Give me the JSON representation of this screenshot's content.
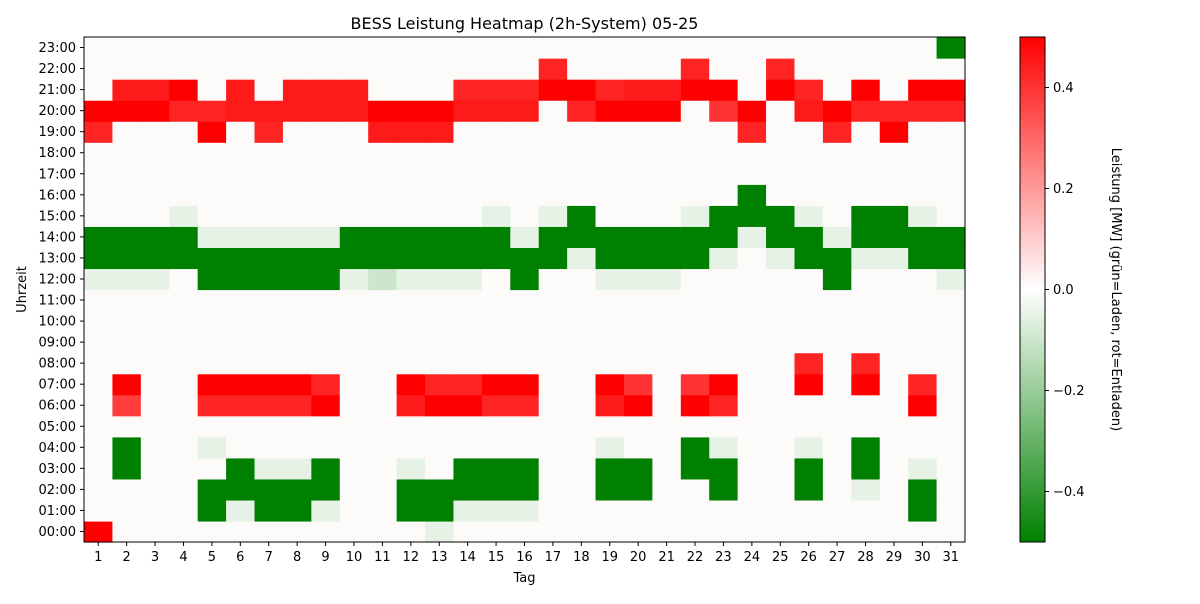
{
  "chart_data": {
    "type": "heatmap",
    "title": "BESS Leistung Heatmap (2h-System) 05-25",
    "xlabel": "Tag",
    "ylabel": "Uhrzeit",
    "x_categories": [
      "1",
      "2",
      "3",
      "4",
      "5",
      "6",
      "7",
      "8",
      "9",
      "10",
      "11",
      "12",
      "13",
      "14",
      "15",
      "16",
      "17",
      "18",
      "19",
      "20",
      "21",
      "22",
      "23",
      "24",
      "25",
      "26",
      "27",
      "28",
      "29",
      "30",
      "31"
    ],
    "y_categories": [
      "00:00",
      "01:00",
      "02:00",
      "03:00",
      "04:00",
      "05:00",
      "06:00",
      "07:00",
      "08:00",
      "09:00",
      "10:00",
      "11:00",
      "12:00",
      "13:00",
      "14:00",
      "15:00",
      "16:00",
      "17:00",
      "18:00",
      "19:00",
      "20:00",
      "21:00",
      "22:00",
      "23:00"
    ],
    "colorbar": {
      "label": "Leistung [MW] (grün=Laden, rot=Entladen)",
      "min": -0.5,
      "max": 0.5,
      "ticks": [
        -0.4,
        -0.2,
        0.0,
        0.2,
        0.4
      ],
      "tick_labels": [
        "−0.4",
        "−0.2",
        "0.0",
        "0.2",
        "0.4"
      ],
      "colors": [
        "#008000",
        "#ffffff",
        "#ff0000"
      ]
    },
    "values": [
      [
        0.5,
        0,
        0,
        0,
        0,
        0,
        0,
        0,
        0,
        0,
        0,
        0,
        -0.05,
        0,
        0,
        0,
        0,
        0,
        0,
        0,
        0,
        0,
        0,
        0,
        0,
        0,
        0,
        0,
        0,
        0,
        0
      ],
      [
        0,
        0,
        0,
        0,
        -0.5,
        -0.05,
        -0.5,
        -0.5,
        -0.05,
        0,
        0,
        -0.5,
        -0.5,
        -0.05,
        -0.05,
        -0.05,
        0,
        0,
        0,
        0,
        0,
        0,
        0,
        0,
        0,
        0,
        0,
        0,
        0,
        -0.5,
        0
      ],
      [
        0,
        0,
        0,
        0,
        -0.5,
        -0.5,
        -0.5,
        -0.5,
        -0.5,
        0,
        0,
        -0.5,
        -0.5,
        -0.5,
        -0.5,
        -0.5,
        0,
        0,
        -0.5,
        -0.5,
        0,
        0,
        -0.5,
        0,
        0,
        -0.5,
        0,
        -0.05,
        0,
        -0.5,
        0
      ],
      [
        0,
        -0.5,
        0,
        0,
        0,
        -0.5,
        -0.05,
        -0.05,
        -0.5,
        0,
        0,
        -0.05,
        0,
        -0.5,
        -0.5,
        -0.5,
        0,
        0,
        -0.5,
        -0.5,
        0,
        -0.5,
        -0.5,
        0,
        0,
        -0.5,
        0,
        -0.5,
        0,
        -0.05,
        0
      ],
      [
        0,
        -0.5,
        0,
        0,
        -0.05,
        0,
        0,
        0,
        0,
        0,
        0,
        0,
        0,
        0,
        0,
        0,
        0,
        0,
        -0.05,
        0,
        0,
        -0.5,
        -0.05,
        0,
        0,
        -0.05,
        0,
        -0.5,
        0,
        0,
        0
      ],
      [
        0,
        0,
        0,
        0,
        0,
        0,
        0,
        0,
        0,
        0,
        0,
        0,
        0,
        0,
        0,
        0,
        0,
        0,
        0,
        0,
        0,
        0,
        0,
        0,
        0,
        0,
        0,
        0,
        0,
        0,
        0
      ],
      [
        0,
        0.38,
        0,
        0,
        0.43,
        0.43,
        0.43,
        0.43,
        0.5,
        0,
        0,
        0.45,
        0.5,
        0.5,
        0.43,
        0.43,
        0,
        0,
        0.45,
        0.5,
        0,
        0.5,
        0.43,
        0,
        0,
        0,
        0,
        0,
        0,
        0.5,
        0
      ],
      [
        0,
        0.5,
        0,
        0,
        0.5,
        0.5,
        0.5,
        0.5,
        0.43,
        0,
        0,
        0.5,
        0.43,
        0.43,
        0.5,
        0.5,
        0,
        0,
        0.5,
        0.4,
        0,
        0.4,
        0.5,
        0,
        0,
        0.5,
        0,
        0.5,
        0,
        0.43,
        0
      ],
      [
        0,
        0,
        0,
        0,
        0,
        0,
        0,
        0,
        0,
        0,
        0,
        0,
        0,
        0,
        0,
        0,
        0,
        0,
        0,
        0,
        0,
        0,
        0,
        0,
        0,
        0.43,
        0,
        0.43,
        0,
        0,
        0
      ],
      [
        0,
        0,
        0,
        0,
        0,
        0,
        0,
        0,
        0,
        0,
        0,
        0,
        0,
        0,
        0,
        0,
        0,
        0,
        0,
        0,
        0,
        0,
        0,
        0,
        0,
        0,
        0,
        0,
        0,
        0,
        0
      ],
      [
        0,
        0,
        0,
        0,
        0,
        0,
        0,
        0,
        0,
        0,
        0,
        0,
        0,
        0,
        0,
        0,
        0,
        0,
        0,
        0,
        0,
        0,
        0,
        0,
        0,
        0,
        0,
        0,
        0,
        0,
        0
      ],
      [
        0,
        0,
        0,
        0,
        0,
        0,
        0,
        0,
        0,
        0,
        0,
        0,
        0,
        0,
        0,
        0,
        0,
        0,
        0,
        0,
        0,
        0,
        0,
        0,
        0,
        0,
        0,
        0,
        0,
        0,
        0
      ],
      [
        -0.05,
        -0.05,
        -0.05,
        0,
        -0.5,
        -0.5,
        -0.5,
        -0.5,
        -0.5,
        -0.05,
        -0.1,
        -0.05,
        -0.05,
        -0.05,
        0,
        -0.5,
        0,
        0,
        -0.05,
        -0.05,
        -0.05,
        0,
        0,
        0,
        0,
        0,
        -0.5,
        0,
        0,
        0,
        -0.05
      ],
      [
        -0.5,
        -0.5,
        -0.5,
        -0.5,
        -0.5,
        -0.5,
        -0.5,
        -0.5,
        -0.5,
        -0.5,
        -0.5,
        -0.5,
        -0.5,
        -0.5,
        -0.5,
        -0.5,
        -0.5,
        -0.05,
        -0.5,
        -0.5,
        -0.5,
        -0.5,
        -0.05,
        0,
        -0.05,
        -0.5,
        -0.5,
        -0.05,
        -0.05,
        -0.5,
        -0.5
      ],
      [
        -0.5,
        -0.5,
        -0.5,
        -0.5,
        -0.05,
        -0.05,
        -0.05,
        -0.05,
        -0.05,
        -0.5,
        -0.5,
        -0.5,
        -0.5,
        -0.5,
        -0.5,
        -0.05,
        -0.5,
        -0.5,
        -0.5,
        -0.5,
        -0.5,
        -0.5,
        -0.5,
        -0.05,
        -0.5,
        -0.5,
        -0.05,
        -0.5,
        -0.5,
        -0.5,
        -0.5
      ],
      [
        0,
        0,
        0,
        -0.05,
        0,
        0,
        0,
        0,
        0,
        0,
        0,
        0,
        0,
        0,
        -0.05,
        0,
        -0.05,
        -0.5,
        0,
        0,
        0,
        -0.05,
        -0.5,
        -0.5,
        -0.5,
        -0.05,
        0,
        -0.5,
        -0.5,
        -0.05,
        0
      ],
      [
        0,
        0,
        0,
        0,
        0,
        0,
        0,
        0,
        0,
        0,
        0,
        0,
        0,
        0,
        0,
        0,
        0,
        0,
        0,
        0,
        0,
        0,
        0,
        -0.5,
        0,
        0,
        0,
        0,
        0,
        0,
        0
      ],
      [
        0,
        0,
        0,
        0,
        0,
        0,
        0,
        0,
        0,
        0,
        0,
        0,
        0,
        0,
        0,
        0,
        0,
        0,
        0,
        0,
        0,
        0,
        0,
        0,
        0,
        0,
        0,
        0,
        0,
        0,
        0
      ],
      [
        0,
        0,
        0,
        0,
        0,
        0,
        0,
        0,
        0,
        0,
        0,
        0,
        0,
        0,
        0,
        0,
        0,
        0,
        0,
        0,
        0,
        0,
        0,
        0,
        0,
        0,
        0,
        0,
        0,
        0,
        0
      ],
      [
        0.43,
        0,
        0,
        0,
        0.5,
        0,
        0.43,
        0,
        0,
        0,
        0.45,
        0.45,
        0.45,
        0,
        0,
        0,
        0,
        0,
        0,
        0,
        0,
        0,
        0,
        0.43,
        0,
        0,
        0.43,
        0,
        0.5,
        0,
        0
      ],
      [
        0.5,
        0.5,
        0.5,
        0.43,
        0.43,
        0.45,
        0.45,
        0.45,
        0.45,
        0.45,
        0.5,
        0.5,
        0.5,
        0.45,
        0.45,
        0.45,
        0,
        0.43,
        0.5,
        0.5,
        0.5,
        0,
        0.4,
        0.5,
        0,
        0.45,
        0.5,
        0.43,
        0.43,
        0.43,
        0.43
      ],
      [
        0,
        0.45,
        0.45,
        0.5,
        0,
        0.45,
        0,
        0.45,
        0.45,
        0.45,
        0,
        0,
        0,
        0.43,
        0.43,
        0.43,
        0.5,
        0.5,
        0.43,
        0.45,
        0.45,
        0.5,
        0.5,
        0,
        0.5,
        0.43,
        0,
        0.5,
        0,
        0.5,
        0.5
      ],
      [
        0,
        0,
        0,
        0,
        0,
        0,
        0,
        0,
        0,
        0,
        0,
        0,
        0,
        0,
        0,
        0,
        0.43,
        0,
        0,
        0,
        0,
        0.43,
        0,
        0,
        0.43,
        0,
        0,
        0,
        0,
        0,
        0
      ],
      [
        0,
        0,
        0,
        0,
        0,
        0,
        0,
        0,
        0,
        0,
        0,
        0,
        0,
        0,
        0,
        0,
        0,
        0,
        0,
        0,
        0,
        0,
        0,
        0,
        0,
        0,
        0,
        0,
        0,
        0,
        -0.5
      ]
    ]
  }
}
